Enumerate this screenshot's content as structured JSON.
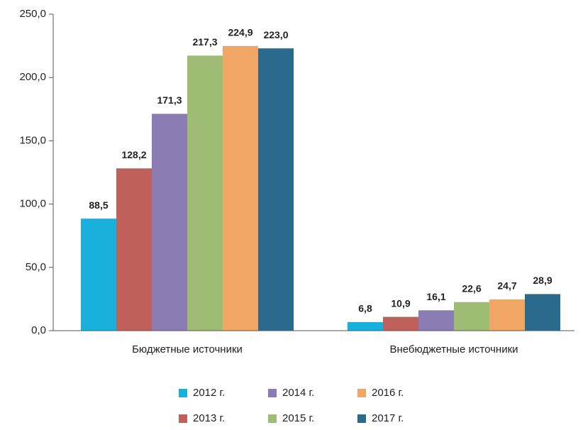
{
  "chart_data": {
    "type": "bar",
    "categories": [
      "Бюджетные источники",
      "Внебюджетные источники"
    ],
    "series": [
      {
        "name": "2012 г.",
        "color": "#1ab0dc",
        "values": [
          88.5,
          6.8
        ],
        "value_labels": [
          "88,5",
          "6,8"
        ]
      },
      {
        "name": "2013 г.",
        "color": "#c0605a",
        "values": [
          128.2,
          10.9
        ],
        "value_labels": [
          "128,2",
          "10,9"
        ]
      },
      {
        "name": "2014 г.",
        "color": "#8b7db3",
        "values": [
          171.3,
          16.1
        ],
        "value_labels": [
          "171,3",
          "16,1"
        ]
      },
      {
        "name": "2015 г.",
        "color": "#9fbc74",
        "values": [
          217.3,
          22.6
        ],
        "value_labels": [
          "217,3",
          "22,6"
        ]
      },
      {
        "name": "2016 г.",
        "color": "#f0a664",
        "values": [
          224.9,
          24.7
        ],
        "value_labels": [
          "224,9",
          "24,7"
        ]
      },
      {
        "name": "2017 г.",
        "color": "#2a6a8d",
        "values": [
          223.0,
          28.9
        ],
        "value_labels": [
          "223,0",
          "28,9"
        ]
      }
    ],
    "ylim": [
      0,
      250
    ],
    "yticks": [
      {
        "value": 0,
        "label": "0,0"
      },
      {
        "value": 50,
        "label": "50,0"
      },
      {
        "value": 100,
        "label": "100,0"
      },
      {
        "value": 150,
        "label": "150,0"
      },
      {
        "value": 200,
        "label": "200,0"
      },
      {
        "value": 250,
        "label": "250,0"
      }
    ],
    "grid": false,
    "legend": "bottom"
  }
}
